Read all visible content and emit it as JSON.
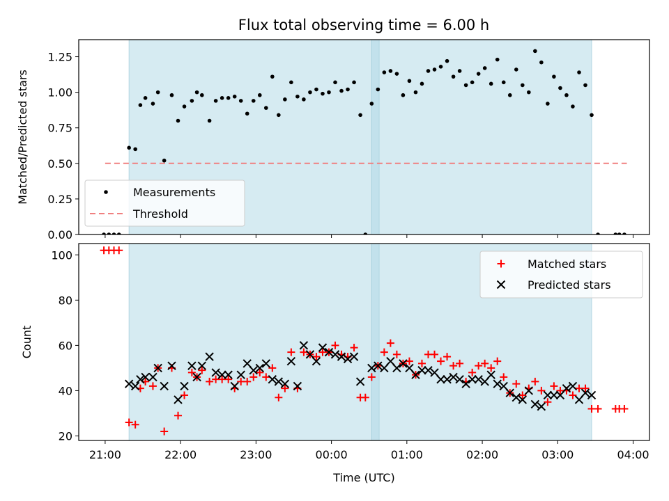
{
  "chart_data": [
    {
      "type": "scatter",
      "title": "Flux total observing time = 6.00 h",
      "xlabel": "",
      "ylabel": "Matched/Predicted stars",
      "ylim": [
        0,
        1.37
      ],
      "yticks": [
        "0.00",
        "0.25",
        "0.50",
        "0.75",
        "1.00",
        "1.25"
      ],
      "legend": {
        "placement": "lower-left",
        "entries": [
          "Measurements",
          "Threshold"
        ]
      },
      "threshold": {
        "name": "Threshold",
        "value": 0.5,
        "x_from": "21:00",
        "x_to": "03:55",
        "color": "#f08080"
      },
      "shaded_intervals": [
        [
          "21:19",
          "00:38"
        ],
        [
          "00:32",
          "03:27"
        ]
      ],
      "series": [
        {
          "name": "Measurements",
          "color": "#000000",
          "points": [
            [
              "20:59",
              0.0
            ],
            [
              "21:03",
              0.0
            ],
            [
              "21:07",
              0.0
            ],
            [
              "21:11",
              0.0
            ],
            [
              "21:19",
              0.61
            ],
            [
              "21:24",
              0.6
            ],
            [
              "21:28",
              0.91
            ],
            [
              "21:32",
              0.96
            ],
            [
              "21:38",
              0.92
            ],
            [
              "21:42",
              1.0
            ],
            [
              "21:47",
              0.52
            ],
            [
              "21:53",
              0.98
            ],
            [
              "21:58",
              0.8
            ],
            [
              "22:03",
              0.9
            ],
            [
              "22:09",
              0.94
            ],
            [
              "22:13",
              1.0
            ],
            [
              "22:17",
              0.98
            ],
            [
              "22:23",
              0.8
            ],
            [
              "22:28",
              0.94
            ],
            [
              "22:33",
              0.96
            ],
            [
              "22:38",
              0.96
            ],
            [
              "22:43",
              0.97
            ],
            [
              "22:48",
              0.94
            ],
            [
              "22:53",
              0.85
            ],
            [
              "22:58",
              0.94
            ],
            [
              "23:03",
              0.98
            ],
            [
              "23:08",
              0.89
            ],
            [
              "23:13",
              1.11
            ],
            [
              "23:18",
              0.84
            ],
            [
              "23:23",
              0.95
            ],
            [
              "23:28",
              1.07
            ],
            [
              "23:33",
              0.97
            ],
            [
              "23:38",
              0.95
            ],
            [
              "23:43",
              1.0
            ],
            [
              "23:48",
              1.02
            ],
            [
              "23:53",
              0.99
            ],
            [
              "23:58",
              1.0
            ],
            [
              "00:03",
              1.07
            ],
            [
              "00:08",
              1.01
            ],
            [
              "00:13",
              1.02
            ],
            [
              "00:18",
              1.07
            ],
            [
              "00:23",
              0.84
            ],
            [
              "00:27",
              0.0
            ],
            [
              "00:32",
              0.92
            ],
            [
              "00:37",
              1.02
            ],
            [
              "00:42",
              1.14
            ],
            [
              "00:47",
              1.15
            ],
            [
              "00:52",
              1.13
            ],
            [
              "00:57",
              0.98
            ],
            [
              "01:02",
              1.08
            ],
            [
              "01:07",
              1.0
            ],
            [
              "01:12",
              1.06
            ],
            [
              "01:17",
              1.15
            ],
            [
              "01:22",
              1.16
            ],
            [
              "01:27",
              1.18
            ],
            [
              "01:32",
              1.22
            ],
            [
              "01:37",
              1.11
            ],
            [
              "01:42",
              1.15
            ],
            [
              "01:47",
              1.05
            ],
            [
              "01:52",
              1.07
            ],
            [
              "01:57",
              1.13
            ],
            [
              "02:02",
              1.17
            ],
            [
              "02:07",
              1.06
            ],
            [
              "02:12",
              1.23
            ],
            [
              "02:17",
              1.07
            ],
            [
              "02:22",
              0.98
            ],
            [
              "02:27",
              1.16
            ],
            [
              "02:32",
              1.05
            ],
            [
              "02:37",
              1.0
            ],
            [
              "02:42",
              1.29
            ],
            [
              "02:47",
              1.21
            ],
            [
              "02:52",
              0.92
            ],
            [
              "02:57",
              1.11
            ],
            [
              "03:02",
              1.03
            ],
            [
              "03:07",
              0.98
            ],
            [
              "03:12",
              0.9
            ],
            [
              "03:17",
              1.14
            ],
            [
              "03:22",
              1.05
            ],
            [
              "03:27",
              0.84
            ],
            [
              "03:32",
              0.0
            ],
            [
              "03:46",
              0.0
            ],
            [
              "03:49",
              0.0
            ],
            [
              "03:53",
              0.0
            ]
          ]
        }
      ]
    },
    {
      "type": "scatter",
      "title": "",
      "xlabel": "Time (UTC)",
      "ylabel": "Count",
      "ylim": [
        18,
        105
      ],
      "yticks": [
        "20",
        "40",
        "60",
        "80",
        "100"
      ],
      "xticks": [
        "21:00",
        "22:00",
        "23:00",
        "00:00",
        "01:00",
        "02:00",
        "03:00",
        "04:00"
      ],
      "legend": {
        "placement": "upper-right",
        "entries": [
          "Matched stars",
          "Predicted stars"
        ]
      },
      "shaded_intervals": [
        [
          "21:19",
          "00:38"
        ],
        [
          "00:32",
          "03:27"
        ]
      ],
      "series": [
        {
          "name": "Matched stars",
          "marker": "plus",
          "color": "#ff0000",
          "points": [
            [
              "20:59",
              102
            ],
            [
              "21:03",
              102
            ],
            [
              "21:07",
              102
            ],
            [
              "21:11",
              102
            ],
            [
              "21:19",
              26
            ],
            [
              "21:24",
              25
            ],
            [
              "21:28",
              41
            ],
            [
              "21:32",
              44
            ],
            [
              "21:38",
              42
            ],
            [
              "21:42",
              50
            ],
            [
              "21:47",
              22
            ],
            [
              "21:53",
              50
            ],
            [
              "21:58",
              29
            ],
            [
              "22:03",
              38
            ],
            [
              "22:09",
              48
            ],
            [
              "22:13",
              46
            ],
            [
              "22:17",
              49
            ],
            [
              "22:23",
              44
            ],
            [
              "22:28",
              45
            ],
            [
              "22:33",
              45
            ],
            [
              "22:38",
              45
            ],
            [
              "22:43",
              41
            ],
            [
              "22:48",
              44
            ],
            [
              "22:53",
              44
            ],
            [
              "22:58",
              46
            ],
            [
              "23:03",
              48
            ],
            [
              "23:08",
              46
            ],
            [
              "23:13",
              50
            ],
            [
              "23:18",
              37
            ],
            [
              "23:23",
              41
            ],
            [
              "23:28",
              57
            ],
            [
              "23:33",
              41
            ],
            [
              "23:38",
              57
            ],
            [
              "23:43",
              56
            ],
            [
              "23:48",
              55
            ],
            [
              "23:53",
              57
            ],
            [
              "23:58",
              57
            ],
            [
              "00:03",
              60
            ],
            [
              "00:08",
              56
            ],
            [
              "00:13",
              55
            ],
            [
              "00:18",
              59
            ],
            [
              "00:23",
              37
            ],
            [
              "00:27",
              37
            ],
            [
              "00:32",
              46
            ],
            [
              "00:37",
              51
            ],
            [
              "00:42",
              57
            ],
            [
              "00:47",
              61
            ],
            [
              "00:52",
              56
            ],
            [
              "00:57",
              52
            ],
            [
              "01:02",
              53
            ],
            [
              "01:07",
              47
            ],
            [
              "01:12",
              52
            ],
            [
              "01:17",
              56
            ],
            [
              "01:22",
              56
            ],
            [
              "01:27",
              53
            ],
            [
              "01:32",
              55
            ],
            [
              "01:37",
              51
            ],
            [
              "01:42",
              52
            ],
            [
              "01:47",
              44
            ],
            [
              "01:52",
              48
            ],
            [
              "01:57",
              51
            ],
            [
              "02:02",
              52
            ],
            [
              "02:07",
              50
            ],
            [
              "02:12",
              53
            ],
            [
              "02:17",
              46
            ],
            [
              "02:22",
              39
            ],
            [
              "02:27",
              43
            ],
            [
              "02:32",
              38
            ],
            [
              "02:37",
              41
            ],
            [
              "02:42",
              44
            ],
            [
              "02:47",
              40
            ],
            [
              "02:52",
              35
            ],
            [
              "02:57",
              42
            ],
            [
              "03:02",
              40
            ],
            [
              "03:07",
              40
            ],
            [
              "03:12",
              38
            ],
            [
              "03:17",
              41
            ],
            [
              "03:22",
              41
            ],
            [
              "03:27",
              32
            ],
            [
              "03:32",
              32
            ],
            [
              "03:46",
              32
            ],
            [
              "03:49",
              32
            ],
            [
              "03:53",
              32
            ]
          ]
        },
        {
          "name": "Predicted stars",
          "marker": "x",
          "color": "#000000",
          "points": [
            [
              "21:19",
              43
            ],
            [
              "21:24",
              42
            ],
            [
              "21:28",
              45
            ],
            [
              "21:32",
              46
            ],
            [
              "21:38",
              46
            ],
            [
              "21:42",
              50
            ],
            [
              "21:47",
              42
            ],
            [
              "21:53",
              51
            ],
            [
              "21:58",
              36
            ],
            [
              "22:03",
              42
            ],
            [
              "22:09",
              51
            ],
            [
              "22:13",
              46
            ],
            [
              "22:17",
              51
            ],
            [
              "22:23",
              55
            ],
            [
              "22:28",
              48
            ],
            [
              "22:33",
              47
            ],
            [
              "22:38",
              47
            ],
            [
              "22:43",
              42
            ],
            [
              "22:48",
              47
            ],
            [
              "22:53",
              52
            ],
            [
              "22:58",
              49
            ],
            [
              "23:03",
              50
            ],
            [
              "23:08",
              52
            ],
            [
              "23:13",
              45
            ],
            [
              "23:18",
              44
            ],
            [
              "23:23",
              43
            ],
            [
              "23:28",
              53
            ],
            [
              "23:33",
              42
            ],
            [
              "23:38",
              60
            ],
            [
              "23:43",
              56
            ],
            [
              "23:48",
              53
            ],
            [
              "23:53",
              59
            ],
            [
              "23:58",
              57
            ],
            [
              "00:03",
              56
            ],
            [
              "00:08",
              55
            ],
            [
              "00:13",
              54
            ],
            [
              "00:18",
              55
            ],
            [
              "00:23",
              44
            ],
            [
              "00:32",
              50
            ],
            [
              "00:37",
              51
            ],
            [
              "00:42",
              50
            ],
            [
              "00:47",
              53
            ],
            [
              "00:52",
              50
            ],
            [
              "00:57",
              52
            ],
            [
              "01:02",
              50
            ],
            [
              "01:07",
              47
            ],
            [
              "01:12",
              49
            ],
            [
              "01:17",
              49
            ],
            [
              "01:22",
              48
            ],
            [
              "01:27",
              45
            ],
            [
              "01:32",
              45
            ],
            [
              "01:37",
              46
            ],
            [
              "01:42",
              45
            ],
            [
              "01:47",
              43
            ],
            [
              "01:52",
              45
            ],
            [
              "01:57",
              45
            ],
            [
              "02:02",
              44
            ],
            [
              "02:07",
              47
            ],
            [
              "02:12",
              43
            ],
            [
              "02:17",
              42
            ],
            [
              "02:22",
              39
            ],
            [
              "02:27",
              37
            ],
            [
              "02:32",
              36
            ],
            [
              "02:37",
              40
            ],
            [
              "02:42",
              34
            ],
            [
              "02:47",
              33
            ],
            [
              "02:52",
              38
            ],
            [
              "02:57",
              38
            ],
            [
              "03:02",
              38
            ],
            [
              "03:07",
              41
            ],
            [
              "03:12",
              42
            ],
            [
              "03:17",
              36
            ],
            [
              "03:22",
              39
            ],
            [
              "03:27",
              38
            ]
          ]
        }
      ]
    }
  ]
}
